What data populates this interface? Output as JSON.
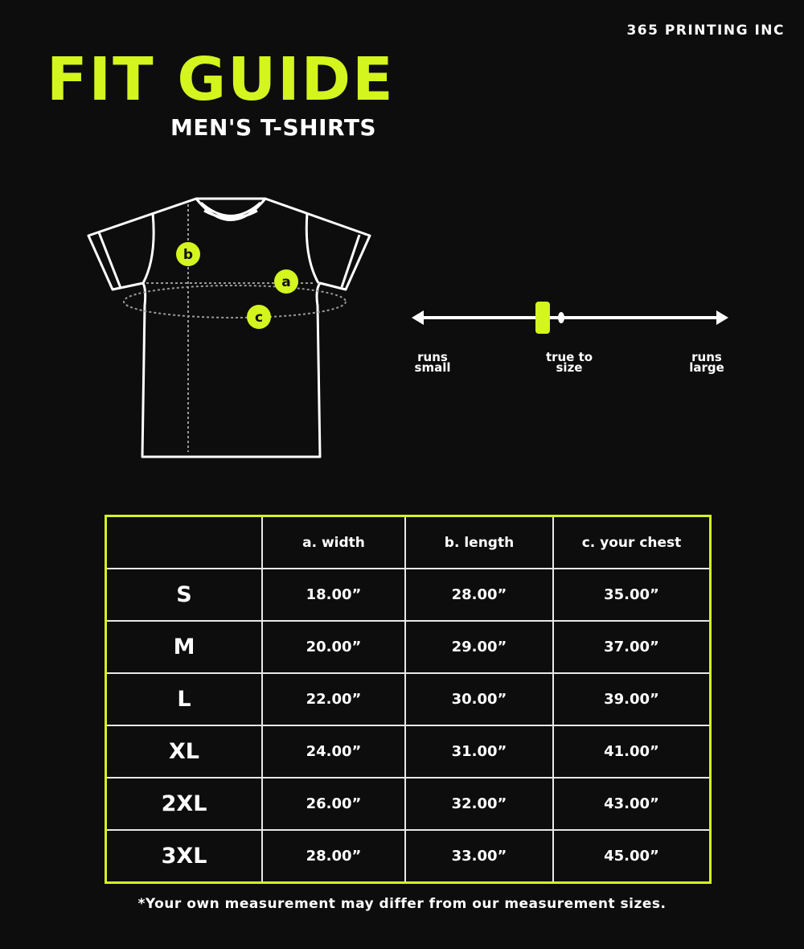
{
  "brand": "365 PRINTING INC",
  "title": "FIT GUIDE",
  "subtitle": "MEN'S T-SHIRTS",
  "colors": {
    "accent": "#d4f51e",
    "background": "#0d0d0d"
  },
  "diagram": {
    "markers": [
      "a",
      "b",
      "c"
    ]
  },
  "fit_scale": {
    "left_label": "runs small",
    "center_label": "true to size",
    "right_label": "runs large",
    "indicator_position": 0.41
  },
  "table": {
    "headers": [
      "",
      "a. width",
      "b. length",
      "c. your chest"
    ],
    "rows": [
      {
        "size": "S",
        "width": "18.00”",
        "length": "28.00”",
        "chest": "35.00”"
      },
      {
        "size": "M",
        "width": "20.00”",
        "length": "29.00”",
        "chest": "37.00”"
      },
      {
        "size": "L",
        "width": "22.00”",
        "length": "30.00”",
        "chest": "39.00”"
      },
      {
        "size": "XL",
        "width": "24.00”",
        "length": "31.00”",
        "chest": "41.00”"
      },
      {
        "size": "2XL",
        "width": "26.00”",
        "length": "32.00”",
        "chest": "43.00”"
      },
      {
        "size": "3XL",
        "width": "28.00”",
        "length": "33.00”",
        "chest": "45.00”"
      }
    ]
  },
  "footnote": "*Your own measurement may differ from our measurement sizes."
}
